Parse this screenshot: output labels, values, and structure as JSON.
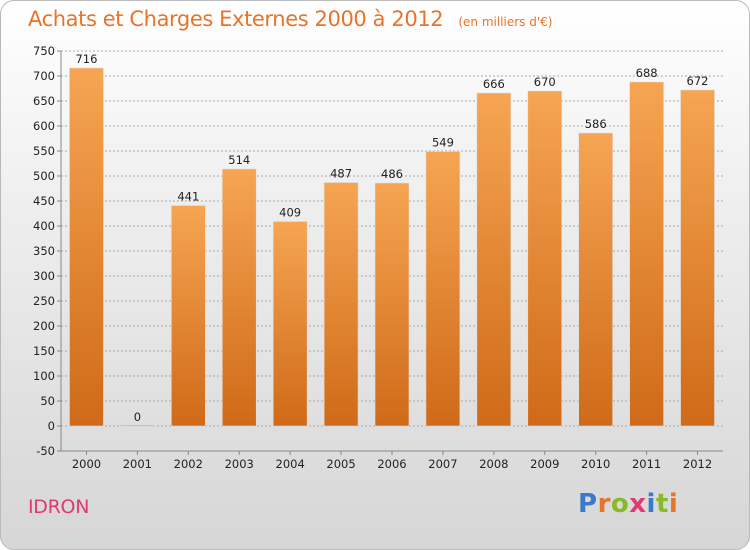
{
  "header": {
    "title": "Achats et Charges Externes 2000 à 2012",
    "subtitle": "(en milliers d'€)"
  },
  "footer": {
    "commune": "IDRON",
    "brand": "Proxiti",
    "brand_letters": [
      "P",
      "r",
      "o",
      "x",
      "i",
      "t",
      "i"
    ],
    "brand_colors": [
      "#3b79c9",
      "#e8742a",
      "#88b926",
      "#e03a6f",
      "#3b79c9",
      "#88b926",
      "#e8742a"
    ]
  },
  "colors": {
    "bar_top": "#f6a552",
    "bar_bottom": "#cf6a18",
    "accent": "#e8742a"
  },
  "chart_data": {
    "type": "bar",
    "title": "Achats et Charges Externes 2000 à 2012",
    "subtitle": "(en milliers d'€)",
    "xlabel": "",
    "ylabel": "",
    "categories": [
      "2000",
      "2001",
      "2002",
      "2003",
      "2004",
      "2005",
      "2006",
      "2007",
      "2008",
      "2009",
      "2010",
      "2011",
      "2012"
    ],
    "values": [
      716,
      0,
      441,
      514,
      409,
      487,
      486,
      549,
      666,
      670,
      586,
      688,
      672
    ],
    "ylim": [
      -50,
      750
    ],
    "yticks": [
      -50,
      0,
      50,
      100,
      150,
      200,
      250,
      300,
      350,
      400,
      450,
      500,
      550,
      600,
      650,
      700,
      750
    ],
    "grid": "dashed",
    "legend": "none"
  }
}
